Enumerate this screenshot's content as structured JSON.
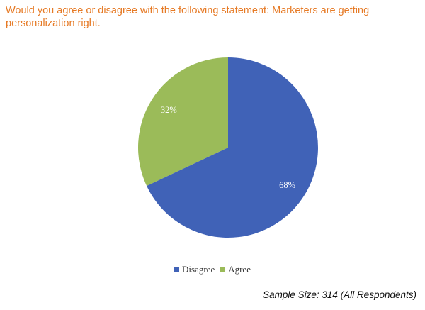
{
  "title": "Would you agree or disagree with the following statement:  Marketers are getting personalization right.",
  "footnote": "Sample Size: 314 (All Respondents)",
  "chart_data": {
    "type": "pie",
    "title": "",
    "slices": [
      {
        "label": "Agree",
        "value": 32,
        "display": "32%",
        "color": "#9bbb59"
      },
      {
        "label": "Disagree",
        "value": 68,
        "display": "68%",
        "color": "#4062b7"
      }
    ],
    "legend": {
      "position": "bottom",
      "order": [
        "Disagree",
        "Agree"
      ]
    },
    "start_angle": "12 o'clock",
    "direction": "counterclockwise"
  }
}
